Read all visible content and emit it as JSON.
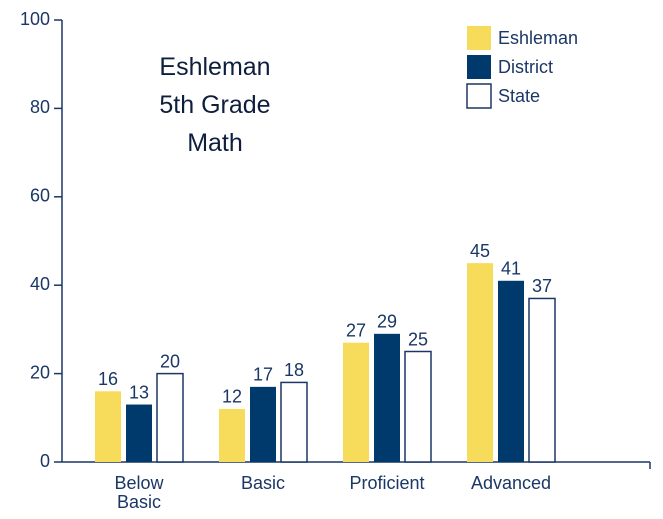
{
  "chart_data": {
    "type": "bar",
    "title": "Eshleman\n5th Grade\nMath",
    "categories": [
      "Below\nBasic",
      "Basic",
      "Proficient",
      "Advanced"
    ],
    "series": [
      {
        "name": "Eshleman",
        "color": "#f7dc5c",
        "values": [
          16,
          12,
          27,
          45
        ]
      },
      {
        "name": "District",
        "color": "#003a6c",
        "values": [
          13,
          17,
          29,
          41
        ]
      },
      {
        "name": "State",
        "color": "#ffffff",
        "values": [
          20,
          18,
          25,
          37
        ]
      }
    ],
    "ylim": [
      0,
      100
    ],
    "yticks": [
      0,
      20,
      40,
      60,
      80,
      100
    ],
    "legend": "upper right",
    "grid": false,
    "data_labels": true
  }
}
